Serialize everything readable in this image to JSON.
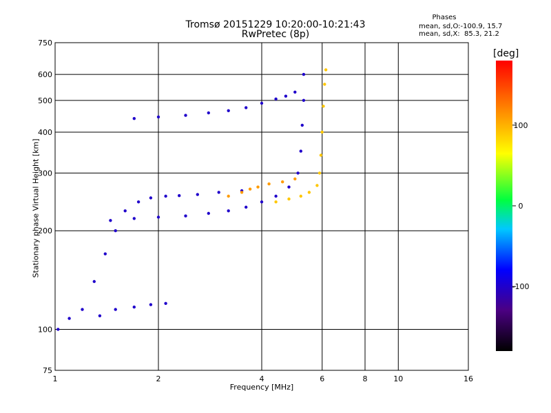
{
  "title": "Tromsø 20151229 10:20:00-10:21:43",
  "subtitle": "RwPretec (8p)",
  "phases": {
    "header": "Phases",
    "o_mode": "mean, sd,O:-100.9, 15.7",
    "x_mode": "mean, sd,X:  85.3, 21.2"
  },
  "colorbar": {
    "unit": "[deg]",
    "min": -180,
    "max": 180,
    "ticks": [
      100,
      0,
      -100
    ]
  },
  "chart_data": {
    "type": "scatter",
    "xlabel": "Frequency [MHz]",
    "ylabel": "Stationary phase Virtual Height [km]",
    "xscale": "log",
    "yscale": "log",
    "xlim": [
      1,
      16
    ],
    "ylim": [
      75,
      750
    ],
    "xticks": [
      1,
      2,
      4,
      6,
      8,
      10,
      16
    ],
    "yticks": [
      75,
      100,
      200,
      300,
      400,
      500,
      600,
      750
    ],
    "grid": true,
    "traces": [
      {
        "name": "",
        "phase": -100,
        "points": [
          [
            1.02,
            100
          ],
          [
            1.1,
            108
          ],
          [
            1.2,
            115
          ],
          [
            1.3,
            140
          ],
          [
            1.4,
            170
          ],
          [
            1.5,
            200
          ],
          [
            1.6,
            230
          ],
          [
            1.75,
            245
          ],
          [
            1.9,
            252
          ],
          [
            2.1,
            255
          ],
          [
            2.3,
            256
          ],
          [
            2.6,
            258
          ],
          [
            3.0,
            262
          ],
          [
            3.5,
            265
          ]
        ]
      },
      {
        "name": "",
        "phase": -100,
        "points": [
          [
            1.45,
            215
          ],
          [
            1.7,
            218
          ],
          [
            2.0,
            220
          ],
          [
            2.4,
            222
          ],
          [
            2.8,
            226
          ],
          [
            3.2,
            230
          ],
          [
            3.6,
            236
          ],
          [
            4.0,
            245
          ],
          [
            4.4,
            255
          ],
          [
            4.8,
            272
          ],
          [
            5.1,
            300
          ],
          [
            5.2,
            350
          ],
          [
            5.25,
            420
          ],
          [
            5.3,
            500
          ],
          [
            5.3,
            600
          ]
        ]
      },
      {
        "name": "",
        "phase": -100,
        "points": [
          [
            1.7,
            440
          ],
          [
            2.0,
            445
          ],
          [
            2.4,
            450
          ],
          [
            2.8,
            458
          ],
          [
            3.2,
            465
          ],
          [
            3.6,
            475
          ],
          [
            4.0,
            490
          ],
          [
            4.4,
            505
          ],
          [
            4.7,
            515
          ],
          [
            5.0,
            530
          ]
        ]
      },
      {
        "name": "",
        "phase": -100,
        "points": [
          [
            1.35,
            110
          ],
          [
            1.5,
            115
          ],
          [
            1.7,
            117
          ],
          [
            1.9,
            119
          ],
          [
            2.1,
            120
          ]
        ]
      },
      {
        "name": "",
        "phase": 90,
        "points": [
          [
            4.4,
            245
          ],
          [
            4.8,
            250
          ],
          [
            5.2,
            255
          ],
          [
            5.5,
            262
          ],
          [
            5.8,
            275
          ],
          [
            5.9,
            300
          ],
          [
            5.95,
            340
          ],
          [
            6.0,
            400
          ],
          [
            6.05,
            480
          ],
          [
            6.1,
            560
          ],
          [
            6.15,
            620
          ]
        ]
      },
      {
        "name": "",
        "phase": 110,
        "points": [
          [
            3.2,
            255
          ],
          [
            3.5,
            262
          ],
          [
            3.7,
            268
          ],
          [
            3.9,
            272
          ],
          [
            4.2,
            278
          ],
          [
            4.6,
            282
          ],
          [
            5.0,
            288
          ]
        ]
      }
    ]
  }
}
